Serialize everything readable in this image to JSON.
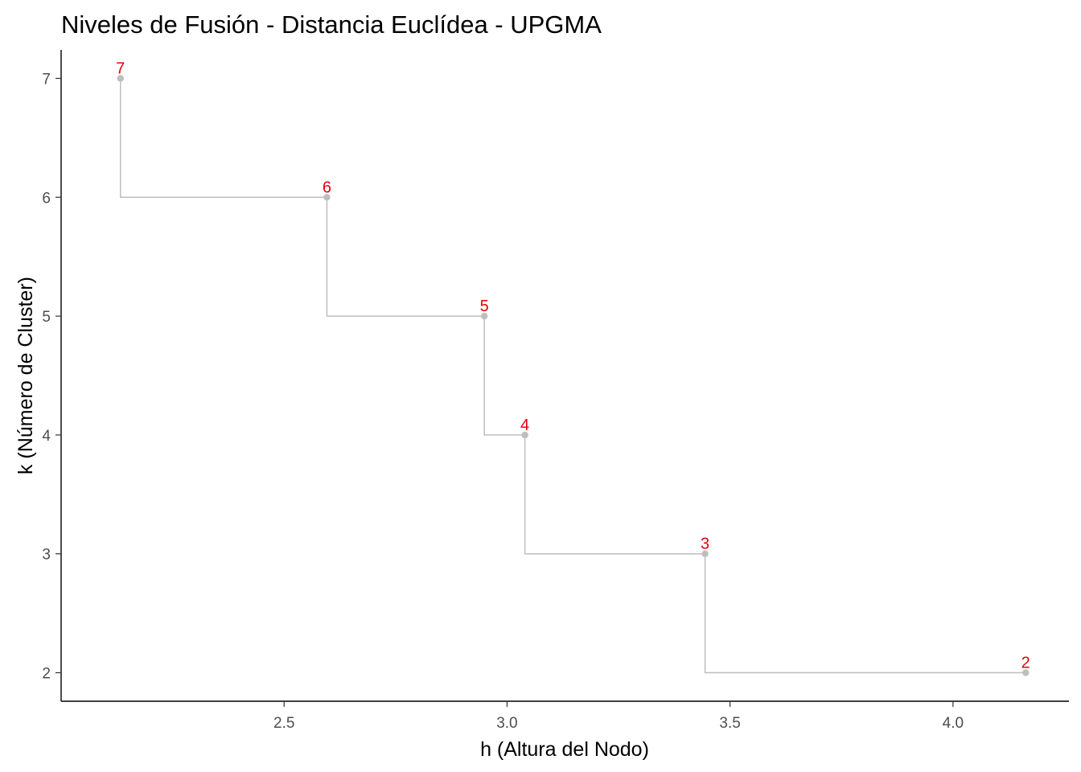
{
  "chart_data": {
    "type": "line",
    "title": "Niveles de Fusión - Distancia Euclídea - UPGMA",
    "xlabel": "h (Altura del Nodo)",
    "ylabel": "k (Número de Cluster)",
    "xlim": [
      2.0,
      4.26
    ],
    "ylim": [
      1.76,
      7.24
    ],
    "x_ticks": [
      2.5,
      3.0,
      3.5,
      4.0
    ],
    "x_tick_labels": [
      "2.5",
      "3.0",
      "3.5",
      "4.0"
    ],
    "y_ticks": [
      2,
      3,
      4,
      5,
      6,
      7
    ],
    "y_tick_labels": [
      "2",
      "3",
      "4",
      "5",
      "6",
      "7"
    ],
    "points": [
      {
        "x": 2.133,
        "y": 7,
        "label": "7"
      },
      {
        "x": 2.596,
        "y": 6,
        "label": "6"
      },
      {
        "x": 2.949,
        "y": 5,
        "label": "5"
      },
      {
        "x": 3.04,
        "y": 4,
        "label": "4"
      },
      {
        "x": 3.444,
        "y": 3,
        "label": "3"
      },
      {
        "x": 4.163,
        "y": 2,
        "label": "2"
      }
    ],
    "step": "vh",
    "grid": false,
    "legend": "none",
    "line_color": "#bebebe",
    "point_color": "#bebebe",
    "label_color": "#e8000b"
  }
}
